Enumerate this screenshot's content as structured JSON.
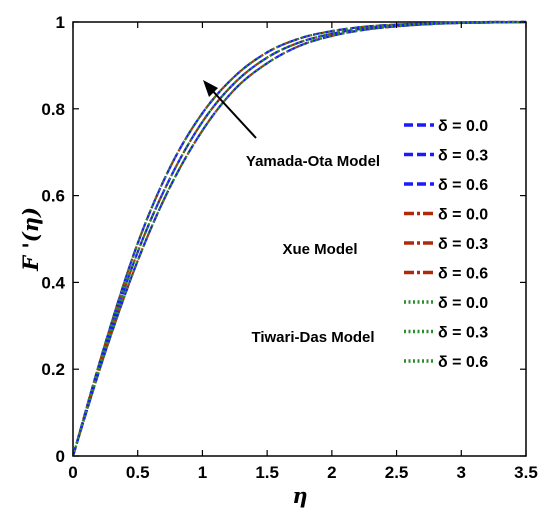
{
  "chart_data": {
    "type": "line",
    "xlabel": "η",
    "ylabel": "F '(η)",
    "xlim": [
      0,
      3.5
    ],
    "ylim": [
      0,
      1
    ],
    "x_ticks": [
      "0",
      "0.5",
      "1",
      "1.5",
      "2",
      "2.5",
      "3",
      "3.5"
    ],
    "y_ticks": [
      "0",
      "0.2",
      "0.4",
      "0.6",
      "0.8",
      "1"
    ],
    "grid": false,
    "legend_position": "right",
    "x": [
      0,
      0.25,
      0.5,
      0.75,
      1,
      1.25,
      1.5,
      1.75,
      2,
      2.25,
      2.5,
      2.75,
      3,
      3.25,
      3.5
    ],
    "group_labels": [
      "Yamada-Ota Model",
      "Xue Model",
      "Tiwari-Das Model"
    ],
    "series": [
      {
        "name": "δ = 0.0",
        "group": "Yamada-Ota Model",
        "color": "#1a1aff",
        "dash": "dash",
        "values": [
          0,
          0.24,
          0.45,
          0.62,
          0.75,
          0.845,
          0.905,
          0.945,
          0.968,
          0.982,
          0.99,
          0.995,
          0.998,
          0.999,
          1.0
        ]
      },
      {
        "name": "δ = 0.3",
        "group": "Yamada-Ota Model",
        "color": "#1a1aff",
        "dash": "dash",
        "values": [
          0,
          0.25,
          0.47,
          0.64,
          0.77,
          0.86,
          0.918,
          0.953,
          0.973,
          0.985,
          0.992,
          0.996,
          0.998,
          0.999,
          1.0
        ]
      },
      {
        "name": "δ = 0.6",
        "group": "Yamada-Ota Model",
        "color": "#1a1aff",
        "dash": "dash",
        "values": [
          0,
          0.26,
          0.49,
          0.665,
          0.79,
          0.875,
          0.93,
          0.962,
          0.979,
          0.989,
          0.994,
          0.997,
          0.999,
          1.0,
          1.0
        ]
      },
      {
        "name": "δ = 0.0",
        "group": "Xue Model",
        "color": "#b02a0a",
        "dash": "dashdot",
        "values": [
          0,
          0.24,
          0.45,
          0.62,
          0.75,
          0.845,
          0.905,
          0.945,
          0.968,
          0.982,
          0.99,
          0.995,
          0.998,
          0.999,
          1.0
        ]
      },
      {
        "name": "δ = 0.3",
        "group": "Xue Model",
        "color": "#b02a0a",
        "dash": "dashdot",
        "values": [
          0,
          0.25,
          0.47,
          0.64,
          0.77,
          0.86,
          0.918,
          0.953,
          0.973,
          0.985,
          0.992,
          0.996,
          0.998,
          0.999,
          1.0
        ]
      },
      {
        "name": "δ = 0.6",
        "group": "Xue Model",
        "color": "#b02a0a",
        "dash": "dashdot",
        "values": [
          0,
          0.26,
          0.49,
          0.665,
          0.79,
          0.875,
          0.93,
          0.962,
          0.979,
          0.989,
          0.994,
          0.997,
          0.999,
          1.0,
          1.0
        ]
      },
      {
        "name": "δ = 0.0",
        "group": "Tiwari-Das Model",
        "color": "#2e8b2e",
        "dash": "dot",
        "values": [
          0,
          0.24,
          0.45,
          0.62,
          0.75,
          0.845,
          0.905,
          0.945,
          0.968,
          0.982,
          0.99,
          0.995,
          0.998,
          0.999,
          1.0
        ]
      },
      {
        "name": "δ = 0.3",
        "group": "Tiwari-Das Model",
        "color": "#2e8b2e",
        "dash": "dot",
        "values": [
          0,
          0.25,
          0.47,
          0.64,
          0.77,
          0.86,
          0.918,
          0.953,
          0.973,
          0.985,
          0.992,
          0.996,
          0.998,
          0.999,
          1.0
        ]
      },
      {
        "name": "δ = 0.6",
        "group": "Tiwari-Das Model",
        "color": "#2e8b2e",
        "dash": "dot",
        "values": [
          0,
          0.26,
          0.49,
          0.665,
          0.79,
          0.875,
          0.93,
          0.962,
          0.979,
          0.989,
          0.994,
          0.997,
          0.999,
          1.0,
          1.0
        ]
      }
    ]
  }
}
